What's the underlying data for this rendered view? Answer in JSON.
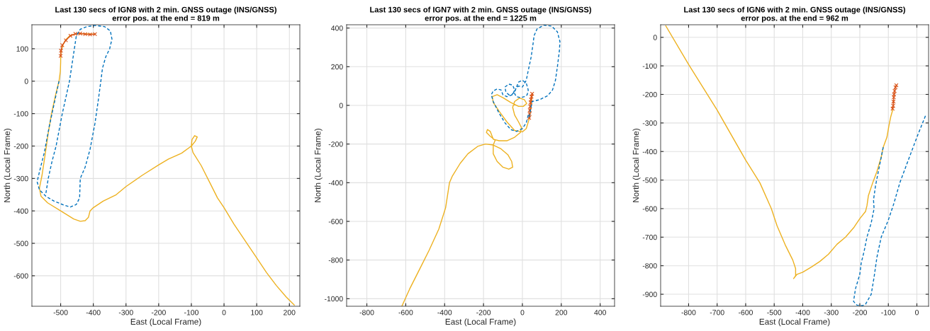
{
  "chart_data": [
    {
      "type": "line",
      "title": "Last 130 secs of IGN8 with 2 min. GNSS outage (INS/GNSS)",
      "subtitle": "error pos. at the end = 819 m",
      "xlabel": "East (Local Frame)",
      "ylabel": "North (Local Frame)",
      "xlim": [
        -588,
        232
      ],
      "ylim": [
        -694,
        174
      ],
      "xticks": [
        -500,
        -400,
        -300,
        -200,
        -100,
        0,
        100,
        200
      ],
      "yticks": [
        -600,
        -500,
        -400,
        -300,
        -200,
        -100,
        0,
        100
      ],
      "grid": true,
      "series": [
        {
          "color": "#0072bd",
          "line_style": "dashed",
          "marker": "none",
          "x": [
            -505,
            -520,
            -535,
            -550,
            -565,
            -572,
            -565,
            -545,
            -520,
            -490,
            -470,
            -452,
            -442,
            -440,
            -425,
            -410,
            -395,
            -385,
            -377,
            -372,
            -362,
            -350,
            -343,
            -348,
            -365,
            -395,
            -420,
            -440,
            -452,
            -458,
            -473,
            -484,
            -495,
            -514,
            -527,
            -538,
            -545
          ],
          "values": [
            0,
            -70,
            -140,
            -220,
            -280,
            -310,
            -335,
            -355,
            -370,
            -382,
            -388,
            -380,
            -360,
            -300,
            -265,
            -210,
            -130,
            -60,
            0,
            40,
            75,
            100,
            130,
            155,
            168,
            172,
            168,
            160,
            140,
            100,
            0,
            -50,
            -100,
            -200,
            -250,
            -300,
            -345
          ]
        },
        {
          "color": "#edb120",
          "line_style": "solid",
          "marker": "none",
          "x": [
            -395,
            -420,
            -440,
            -455,
            -472,
            -484,
            -493,
            -498,
            -500,
            -500,
            -501,
            -505,
            -515,
            -528,
            -538,
            -548,
            -557,
            -565,
            -560,
            -540,
            -500,
            -460,
            -440,
            -425,
            -415,
            -410,
            -400,
            -370,
            -330,
            -300,
            -250,
            -200,
            -170,
            -130,
            -100,
            -88,
            -82,
            -90,
            -98,
            -100,
            -95,
            -70,
            -45,
            -20,
            0,
            30,
            70,
            100,
            130,
            160,
            190,
            215
          ],
          "values": [
            145,
            146,
            147,
            146,
            140,
            128,
            112,
            95,
            78,
            60,
            30,
            0,
            -40,
            -100,
            -160,
            -230,
            -290,
            -330,
            -355,
            -375,
            -400,
            -425,
            -432,
            -430,
            -420,
            -400,
            -390,
            -370,
            -350,
            -325,
            -290,
            -258,
            -240,
            -222,
            -200,
            -185,
            -172,
            -168,
            -180,
            -200,
            -220,
            -260,
            -310,
            -360,
            -390,
            -440,
            -500,
            -545,
            -590,
            -630,
            -665,
            -690
          ]
        },
        {
          "color": "#d95319",
          "line_style": "solid",
          "marker": "cross",
          "x": [
            -500,
            -499,
            -495,
            -484,
            -470,
            -455,
            -440,
            -425,
            -410,
            -395
          ],
          "values": [
            78,
            94,
            111,
            126,
            140,
            146,
            147,
            145,
            144,
            145
          ]
        }
      ]
    },
    {
      "type": "line",
      "title": "Last 130 secs of IGN7 with 2 min. GNSS outage (INS/GNSS)",
      "subtitle": "error pos. at the end = 1225 m",
      "xlabel": "East (Local Frame)",
      "ylabel": "North (Local Frame)",
      "xlim": [
        -904,
        474
      ],
      "ylim": [
        -1039,
        417
      ],
      "xticks": [
        -800,
        -600,
        -400,
        -200,
        0,
        200,
        400
      ],
      "yticks": [
        -1000,
        -800,
        -600,
        -400,
        -200,
        0,
        200,
        400
      ],
      "grid": true,
      "series": [
        {
          "color": "#0072bd",
          "line_style": "dashed",
          "marker": "none",
          "x": [
            35,
            50,
            90,
            130,
            155,
            170,
            180,
            190,
            193,
            180,
            150,
            110,
            75,
            60,
            55,
            45,
            30,
            20,
            0,
            -20,
            -35,
            -40,
            -30,
            -10,
            10,
            25,
            30,
            20,
            0,
            -20,
            -30,
            -40,
            -55,
            -70,
            -85,
            -90,
            -70,
            -50,
            -40,
            -50,
            -80,
            -100,
            -110,
            -130,
            -150,
            -160,
            -150,
            -120,
            -90,
            -60,
            -30,
            0,
            20,
            30
          ],
          "values": [
            -60,
            20,
            30,
            50,
            80,
            130,
            200,
            280,
            330,
            380,
            410,
            415,
            395,
            360,
            320,
            250,
            180,
            130,
            95,
            100,
            85,
            60,
            45,
            40,
            45,
            55,
            80,
            115,
            130,
            120,
            95,
            70,
            55,
            55,
            70,
            95,
            110,
            105,
            80,
            55,
            45,
            55,
            80,
            85,
            75,
            55,
            20,
            -40,
            -90,
            -125,
            -135,
            -120,
            -90,
            -50
          ]
        },
        {
          "color": "#edb120",
          "line_style": "solid",
          "marker": "none",
          "x": [
            -620,
            -580,
            -530,
            -480,
            -430,
            -395,
            -375,
            -360,
            -320,
            -280,
            -230,
            -190,
            -150,
            -110,
            -75,
            -55,
            -50,
            -70,
            -100,
            -130,
            -150,
            -150,
            -140,
            -165,
            -185,
            -180,
            -165,
            -150,
            -120,
            -80,
            -40,
            -10,
            -5,
            -20,
            -40,
            -50,
            -40,
            -15,
            10,
            22,
            5,
            -20,
            -60,
            -100,
            -130,
            -155,
            -150,
            -120,
            -80,
            -40,
            0,
            20,
            35,
            45,
            50
          ],
          "values": [
            -1039,
            -950,
            -850,
            -750,
            -640,
            -530,
            -400,
            -365,
            -300,
            -250,
            -212,
            -200,
            -205,
            -225,
            -255,
            -290,
            -320,
            -330,
            -320,
            -290,
            -250,
            -205,
            -180,
            -160,
            -140,
            -125,
            -135,
            -175,
            -183,
            -183,
            -165,
            -140,
            -115,
            -85,
            -50,
            -10,
            20,
            38,
            30,
            10,
            -5,
            -5,
            15,
            40,
            55,
            45,
            15,
            -30,
            -85,
            -130,
            -137,
            -120,
            -70,
            0,
            60
          ]
        },
        {
          "color": "#d95319",
          "line_style": "solid",
          "marker": "cross",
          "x": [
            35,
            37,
            38,
            40,
            42,
            44,
            47,
            50
          ],
          "values": [
            -65,
            -45,
            -25,
            -5,
            15,
            30,
            45,
            60
          ]
        }
      ]
    },
    {
      "type": "line",
      "title": "Last 130 secs of IGN6 with 2 min. GNSS outage (INS/GNSS)",
      "subtitle": "error pos. at the end = 962 m",
      "xlabel": "East (Local Frame)",
      "ylabel": "North (Local Frame)",
      "xlim": [
        -898,
        41
      ],
      "ylim": [
        -942,
        44
      ],
      "xticks": [
        -800,
        -700,
        -600,
        -500,
        -400,
        -300,
        -200,
        -100,
        0
      ],
      "yticks": [
        -900,
        -800,
        -700,
        -600,
        -500,
        -400,
        -300,
        -200,
        -100,
        0
      ],
      "grid": true,
      "series": [
        {
          "color": "#0072bd",
          "line_style": "dashed",
          "marker": "none",
          "x": [
            30,
            0,
            -30,
            -60,
            -80,
            -100,
            -125,
            -140,
            -150,
            -160,
            -180,
            -190,
            -210,
            -222,
            -215,
            -200,
            -195,
            -185,
            -175,
            -160,
            -150,
            -152,
            -145,
            -135,
            -125,
            -118
          ],
          "values": [
            -275,
            -350,
            -430,
            -510,
            -580,
            -640,
            -700,
            -770,
            -840,
            -900,
            -935,
            -940,
            -938,
            -925,
            -880,
            -830,
            -790,
            -750,
            -700,
            -650,
            -600,
            -570,
            -520,
            -470,
            -420,
            -385
          ]
        },
        {
          "color": "#edb120",
          "line_style": "solid",
          "marker": "none",
          "x": [
            -880,
            -800,
            -700,
            -600,
            -550,
            -510,
            -490,
            -460,
            -435,
            -425,
            -425,
            -432,
            -420,
            -400,
            -370,
            -340,
            -310,
            -280,
            -250,
            -220,
            -200,
            -180,
            -175,
            -170,
            -155,
            -140,
            -125,
            -118,
            -105,
            -98,
            -92,
            -85
          ],
          "values": [
            40,
            -95,
            -255,
            -430,
            -510,
            -600,
            -660,
            -730,
            -780,
            -810,
            -835,
            -845,
            -830,
            -823,
            -805,
            -785,
            -760,
            -725,
            -700,
            -665,
            -635,
            -610,
            -590,
            -555,
            -510,
            -470,
            -420,
            -385,
            -350,
            -310,
            -280,
            -255
          ]
        },
        {
          "color": "#d95319",
          "line_style": "solid",
          "marker": "cross",
          "x": [
            -85,
            -83,
            -82,
            -81,
            -80,
            -78,
            -75,
            -72
          ],
          "values": [
            -250,
            -240,
            -225,
            -210,
            -200,
            -188,
            -175,
            -168
          ]
        }
      ]
    }
  ]
}
